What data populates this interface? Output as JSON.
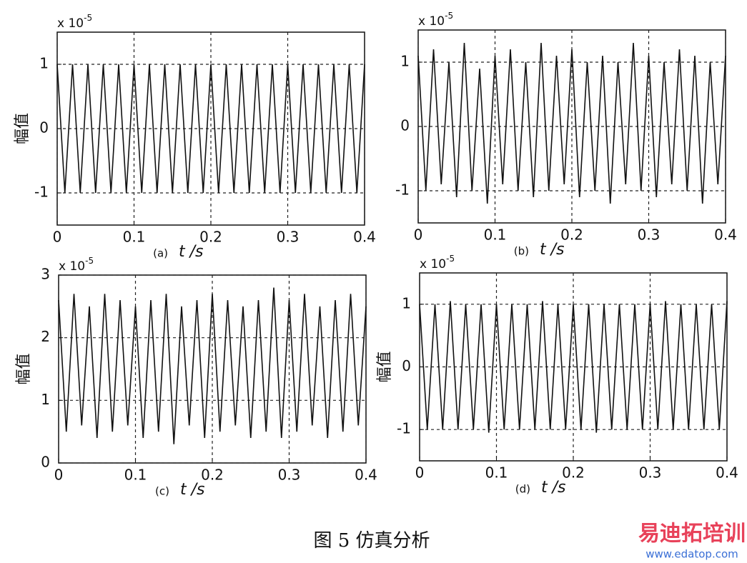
{
  "chart_data": [
    {
      "type": "line",
      "panel_tag": "(a)",
      "xlabel": "t /s",
      "ylabel": "幅值",
      "multiplier": {
        "base": "x 10",
        "exponent": "-5"
      },
      "x": [
        0,
        0.01,
        0.02,
        0.03,
        0.04,
        0.05,
        0.06,
        0.07,
        0.08,
        0.09,
        0.1,
        0.11,
        0.12,
        0.13,
        0.14,
        0.15,
        0.16,
        0.17,
        0.18,
        0.19,
        0.2,
        0.21,
        0.22,
        0.23,
        0.24,
        0.25,
        0.26,
        0.27,
        0.28,
        0.29,
        0.3,
        0.31,
        0.32,
        0.33,
        0.34,
        0.35,
        0.36,
        0.37,
        0.38,
        0.39,
        0.4
      ],
      "values": [
        1,
        -1,
        1,
        -1,
        1,
        -1,
        1,
        -1,
        1,
        -1,
        1,
        -1,
        1,
        -1,
        1,
        -1,
        1,
        -1,
        1,
        -1,
        1,
        -1,
        1,
        -1,
        1,
        -1,
        1,
        -1,
        1,
        -1,
        1,
        -1,
        1,
        -1,
        1,
        -1,
        1,
        -1,
        1,
        -1,
        1
      ],
      "color": "#111111",
      "xlim": [
        0,
        0.4
      ],
      "ylim": [
        -1.5,
        1.5
      ],
      "xticks": [
        0,
        0.1,
        0.2,
        0.3,
        0.4
      ],
      "yticks": [
        -1,
        0,
        1
      ],
      "grid": true
    },
    {
      "type": "line",
      "panel_tag": "(b)",
      "xlabel": "t /s",
      "multiplier": {
        "base": "x 10",
        "exponent": "-5"
      },
      "x": [
        0,
        0.01,
        0.02,
        0.03,
        0.04,
        0.05,
        0.06,
        0.07,
        0.08,
        0.09,
        0.1,
        0.11,
        0.12,
        0.13,
        0.14,
        0.15,
        0.16,
        0.17,
        0.18,
        0.19,
        0.2,
        0.21,
        0.22,
        0.23,
        0.24,
        0.25,
        0.26,
        0.27,
        0.28,
        0.29,
        0.3,
        0.31,
        0.32,
        0.33,
        0.34,
        0.35,
        0.36,
        0.37,
        0.38,
        0.39,
        0.4
      ],
      "values": [
        1.1,
        -1.0,
        1.2,
        -0.9,
        1.0,
        -1.1,
        1.3,
        -1.0,
        0.9,
        -1.2,
        1.1,
        -0.9,
        1.2,
        -1.0,
        1.0,
        -1.1,
        1.3,
        -1.0,
        1.1,
        -0.9,
        1.2,
        -1.1,
        1.0,
        -1.0,
        1.1,
        -1.2,
        1.0,
        -0.9,
        1.3,
        -1.0,
        1.1,
        -1.1,
        1.0,
        -0.9,
        1.2,
        -1.0,
        1.1,
        -1.2,
        1.0,
        -0.9,
        1.1
      ],
      "color": "#111111",
      "xlim": [
        0,
        0.4
      ],
      "ylim": [
        -1.5,
        1.5
      ],
      "xticks": [
        0,
        0.1,
        0.2,
        0.3,
        0.4
      ],
      "yticks": [
        -1,
        0,
        1
      ],
      "grid": true
    },
    {
      "type": "line",
      "panel_tag": "(c)",
      "xlabel": "t /s",
      "ylabel": "幅值",
      "multiplier": {
        "base": "x 10",
        "exponent": "-5"
      },
      "x": [
        0,
        0.01,
        0.02,
        0.03,
        0.04,
        0.05,
        0.06,
        0.07,
        0.08,
        0.09,
        0.1,
        0.11,
        0.12,
        0.13,
        0.14,
        0.15,
        0.16,
        0.17,
        0.18,
        0.19,
        0.2,
        0.21,
        0.22,
        0.23,
        0.24,
        0.25,
        0.26,
        0.27,
        0.28,
        0.29,
        0.3,
        0.31,
        0.32,
        0.33,
        0.34,
        0.35,
        0.36,
        0.37,
        0.38,
        0.39,
        0.4
      ],
      "values": [
        2.6,
        0.5,
        2.7,
        0.6,
        2.5,
        0.4,
        2.7,
        0.5,
        2.6,
        0.6,
        2.5,
        0.4,
        2.6,
        0.5,
        2.7,
        0.3,
        2.5,
        0.6,
        2.6,
        0.4,
        2.7,
        0.5,
        2.6,
        0.6,
        2.5,
        0.4,
        2.6,
        0.5,
        2.8,
        0.4,
        2.6,
        0.5,
        2.7,
        0.6,
        2.5,
        0.4,
        2.6,
        0.5,
        2.7,
        0.6,
        2.5
      ],
      "color": "#111111",
      "xlim": [
        0,
        0.4
      ],
      "ylim": [
        0,
        3
      ],
      "xticks": [
        0,
        0.1,
        0.2,
        0.3,
        0.4
      ],
      "yticks": [
        0,
        1,
        2,
        3
      ],
      "grid": true
    },
    {
      "type": "line",
      "panel_tag": "(d)",
      "xlabel": "t /s",
      "ylabel": "幅值",
      "multiplier": {
        "base": "x 10",
        "exponent": "-5"
      },
      "x": [
        0,
        0.01,
        0.02,
        0.03,
        0.04,
        0.05,
        0.06,
        0.07,
        0.08,
        0.09,
        0.1,
        0.11,
        0.12,
        0.13,
        0.14,
        0.15,
        0.16,
        0.17,
        0.18,
        0.19,
        0.2,
        0.21,
        0.22,
        0.23,
        0.24,
        0.25,
        0.26,
        0.27,
        0.28,
        0.29,
        0.3,
        0.31,
        0.32,
        0.33,
        0.34,
        0.35,
        0.36,
        0.37,
        0.38,
        0.39,
        0.4
      ],
      "values": [
        1,
        -1,
        1,
        -1,
        1.05,
        -1,
        1,
        -1,
        1,
        -1.05,
        1,
        -1,
        1,
        -1,
        1,
        -1,
        1.05,
        -1,
        1,
        -1,
        1,
        -1,
        1,
        -1.05,
        1,
        -1,
        1,
        -1,
        1,
        -1,
        1,
        -1,
        1.05,
        -1,
        1,
        -1,
        1,
        -1,
        1,
        -1,
        1.05
      ],
      "color": "#111111",
      "xlim": [
        0,
        0.4
      ],
      "ylim": [
        -1.5,
        1.5
      ],
      "xticks": [
        0,
        0.1,
        0.2,
        0.3,
        0.4
      ],
      "yticks": [
        -1,
        0,
        1
      ],
      "grid": true
    }
  ],
  "caption": "图 5    仿真分析",
  "watermark": {
    "title": "易迪拓培训",
    "url": "www.edatop.com"
  }
}
